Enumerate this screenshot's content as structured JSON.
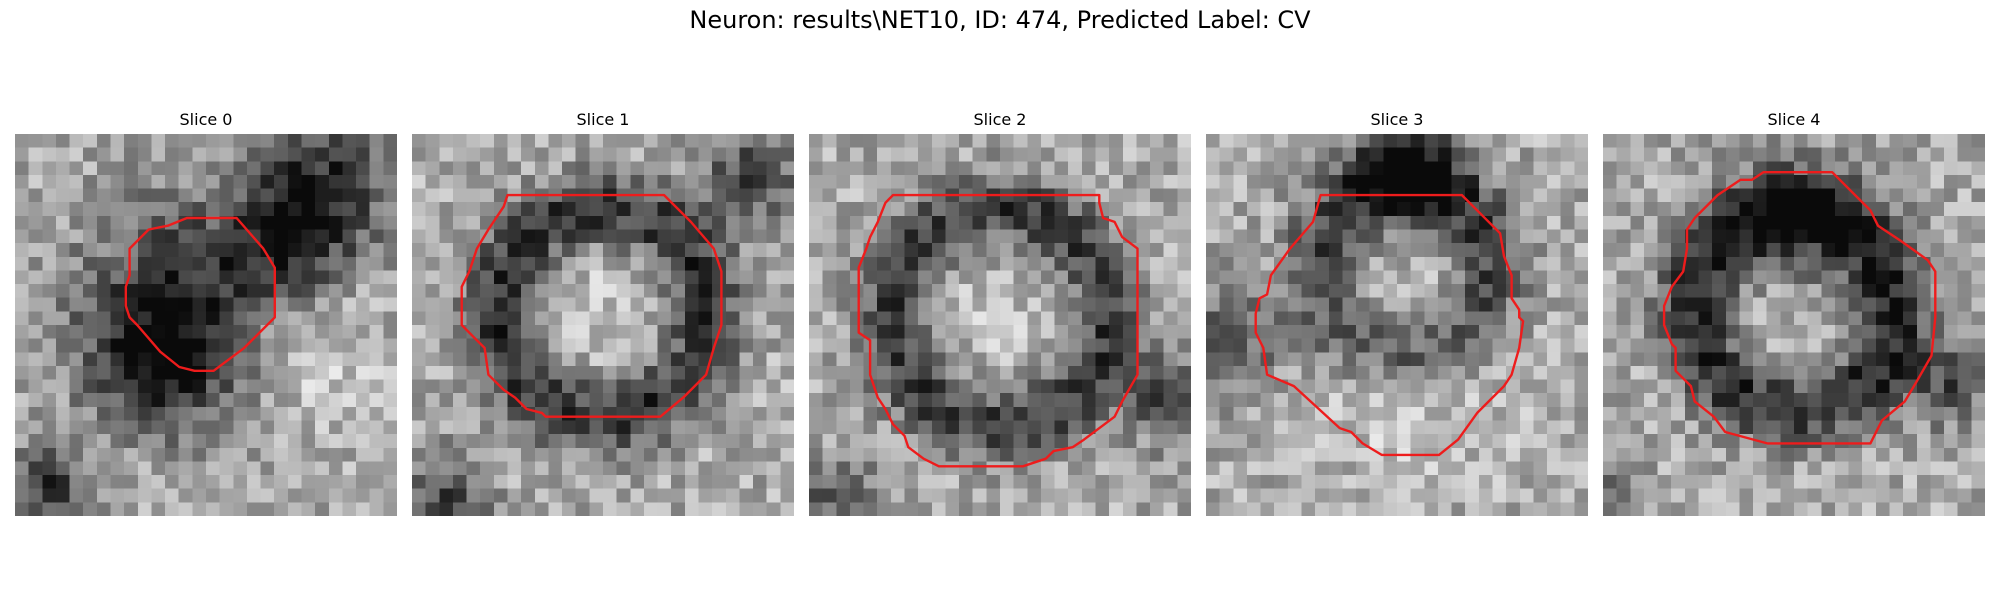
{
  "figure": {
    "title": "Neuron: results\\NET10, ID: 474, Predicted Label: CV"
  },
  "colors": {
    "contour": "#ee1c1c",
    "background": "#ffffff"
  },
  "slices": [
    {
      "label": "Slice 0",
      "seed": 11,
      "blobs": [
        [
          0.45,
          0.45,
          0.19,
          -0.55
        ],
        [
          0.35,
          0.62,
          0.12,
          -0.45
        ],
        [
          0.8,
          0.15,
          0.13,
          -0.55
        ],
        [
          0.7,
          0.3,
          0.1,
          -0.35
        ],
        [
          0.1,
          0.92,
          0.09,
          -0.55
        ],
        [
          0.75,
          0.55,
          0.12,
          0.25
        ],
        [
          0.2,
          0.85,
          0.12,
          0.15
        ]
      ],
      "contour": [
        [
          0.3,
          0.3
        ],
        [
          0.35,
          0.25
        ],
        [
          0.4,
          0.24
        ],
        [
          0.45,
          0.22
        ],
        [
          0.58,
          0.22
        ],
        [
          0.65,
          0.3
        ],
        [
          0.68,
          0.35
        ],
        [
          0.68,
          0.48
        ],
        [
          0.6,
          0.56
        ],
        [
          0.52,
          0.62
        ],
        [
          0.47,
          0.62
        ],
        [
          0.43,
          0.61
        ],
        [
          0.38,
          0.57
        ],
        [
          0.32,
          0.5
        ],
        [
          0.3,
          0.48
        ],
        [
          0.29,
          0.45
        ],
        [
          0.29,
          0.4
        ],
        [
          0.3,
          0.37
        ]
      ]
    },
    {
      "label": "Slice 1",
      "seed": 23,
      "blobs": [
        [
          0.5,
          0.47,
          0.36,
          -0.55,
          0.27
        ],
        [
          0.88,
          0.12,
          0.09,
          -0.45
        ],
        [
          0.08,
          0.95,
          0.08,
          -0.45
        ],
        [
          0.5,
          0.45,
          0.22,
          0.1
        ]
      ],
      "contour": [
        [
          0.2,
          0.25
        ],
        [
          0.24,
          0.19
        ],
        [
          0.25,
          0.16
        ],
        [
          0.35,
          0.16
        ],
        [
          0.48,
          0.16
        ],
        [
          0.59,
          0.16
        ],
        [
          0.66,
          0.16
        ],
        [
          0.73,
          0.23
        ],
        [
          0.79,
          0.3
        ],
        [
          0.81,
          0.36
        ],
        [
          0.81,
          0.5
        ],
        [
          0.79,
          0.56
        ],
        [
          0.77,
          0.63
        ],
        [
          0.71,
          0.69
        ],
        [
          0.65,
          0.74
        ],
        [
          0.6,
          0.74
        ],
        [
          0.59,
          0.74
        ],
        [
          0.35,
          0.74
        ],
        [
          0.34,
          0.73
        ],
        [
          0.3,
          0.72
        ],
        [
          0.27,
          0.69
        ],
        [
          0.24,
          0.67
        ],
        [
          0.2,
          0.63
        ],
        [
          0.19,
          0.56
        ],
        [
          0.17,
          0.54
        ],
        [
          0.13,
          0.5
        ],
        [
          0.13,
          0.4
        ],
        [
          0.15,
          0.36
        ],
        [
          0.16,
          0.33
        ],
        [
          0.17,
          0.3
        ]
      ]
    },
    {
      "label": "Slice 2",
      "seed": 37,
      "blobs": [
        [
          0.5,
          0.48,
          0.4,
          -0.5,
          0.28
        ],
        [
          0.95,
          0.7,
          0.08,
          -0.45
        ],
        [
          0.08,
          0.95,
          0.08,
          -0.35
        ],
        [
          0.5,
          0.48,
          0.22,
          0.08
        ]
      ],
      "contour": [
        [
          0.18,
          0.23
        ],
        [
          0.2,
          0.18
        ],
        [
          0.22,
          0.16
        ],
        [
          0.24,
          0.16
        ],
        [
          0.76,
          0.16
        ],
        [
          0.76,
          0.18
        ],
        [
          0.77,
          0.22
        ],
        [
          0.8,
          0.23
        ],
        [
          0.82,
          0.27
        ],
        [
          0.86,
          0.3
        ],
        [
          0.86,
          0.42
        ],
        [
          0.86,
          0.63
        ],
        [
          0.82,
          0.7
        ],
        [
          0.8,
          0.74
        ],
        [
          0.72,
          0.8
        ],
        [
          0.69,
          0.82
        ],
        [
          0.64,
          0.83
        ],
        [
          0.62,
          0.85
        ],
        [
          0.56,
          0.87
        ],
        [
          0.34,
          0.87
        ],
        [
          0.3,
          0.85
        ],
        [
          0.26,
          0.82
        ],
        [
          0.25,
          0.79
        ],
        [
          0.22,
          0.76
        ],
        [
          0.2,
          0.72
        ],
        [
          0.18,
          0.69
        ],
        [
          0.16,
          0.63
        ],
        [
          0.16,
          0.54
        ],
        [
          0.13,
          0.52
        ],
        [
          0.13,
          0.35
        ],
        [
          0.15,
          0.3
        ],
        [
          0.16,
          0.27
        ]
      ]
    },
    {
      "label": "Slice 3",
      "seed": 51,
      "blobs": [
        [
          0.52,
          0.35,
          0.3,
          -0.45,
          0.22
        ],
        [
          0.53,
          0.1,
          0.1,
          -0.55
        ],
        [
          0.05,
          0.55,
          0.1,
          -0.4
        ],
        [
          0.52,
          0.6,
          0.2,
          0.15
        ]
      ],
      "contour": [
        [
          0.22,
          0.3
        ],
        [
          0.28,
          0.23
        ],
        [
          0.3,
          0.16
        ],
        [
          0.32,
          0.16
        ],
        [
          0.67,
          0.16
        ],
        [
          0.72,
          0.21
        ],
        [
          0.77,
          0.26
        ],
        [
          0.78,
          0.32
        ],
        [
          0.8,
          0.37
        ],
        [
          0.8,
          0.43
        ],
        [
          0.82,
          0.46
        ],
        [
          0.82,
          0.48
        ],
        [
          0.83,
          0.49
        ],
        [
          0.82,
          0.56
        ],
        [
          0.8,
          0.63
        ],
        [
          0.78,
          0.66
        ],
        [
          0.71,
          0.73
        ],
        [
          0.66,
          0.8
        ],
        [
          0.61,
          0.84
        ],
        [
          0.59,
          0.84
        ],
        [
          0.46,
          0.84
        ],
        [
          0.41,
          0.81
        ],
        [
          0.38,
          0.78
        ],
        [
          0.35,
          0.77
        ],
        [
          0.23,
          0.66
        ],
        [
          0.16,
          0.63
        ],
        [
          0.15,
          0.56
        ],
        [
          0.13,
          0.52
        ],
        [
          0.13,
          0.47
        ],
        [
          0.14,
          0.43
        ],
        [
          0.16,
          0.42
        ],
        [
          0.17,
          0.37
        ]
      ]
    },
    {
      "label": "Slice 4",
      "seed": 67,
      "blobs": [
        [
          0.5,
          0.46,
          0.38,
          -0.6,
          0.26
        ],
        [
          0.52,
          0.25,
          0.13,
          -0.35
        ],
        [
          0.9,
          0.65,
          0.08,
          -0.4
        ],
        [
          0.03,
          0.95,
          0.06,
          -0.35
        ],
        [
          0.52,
          0.52,
          0.18,
          0.12
        ]
      ],
      "contour": [
        [
          0.24,
          0.22
        ],
        [
          0.3,
          0.16
        ],
        [
          0.36,
          0.12
        ],
        [
          0.39,
          0.12
        ],
        [
          0.42,
          0.1
        ],
        [
          0.6,
          0.1
        ],
        [
          0.66,
          0.16
        ],
        [
          0.7,
          0.2
        ],
        [
          0.72,
          0.24
        ],
        [
          0.78,
          0.28
        ],
        [
          0.85,
          0.33
        ],
        [
          0.87,
          0.36
        ],
        [
          0.87,
          0.48
        ],
        [
          0.86,
          0.58
        ],
        [
          0.82,
          0.65
        ],
        [
          0.79,
          0.7
        ],
        [
          0.73,
          0.75
        ],
        [
          0.7,
          0.81
        ],
        [
          0.69,
          0.81
        ],
        [
          0.65,
          0.81
        ],
        [
          0.43,
          0.81
        ],
        [
          0.32,
          0.78
        ],
        [
          0.29,
          0.74
        ],
        [
          0.24,
          0.7
        ],
        [
          0.23,
          0.66
        ],
        [
          0.19,
          0.62
        ],
        [
          0.19,
          0.56
        ],
        [
          0.18,
          0.55
        ],
        [
          0.16,
          0.5
        ],
        [
          0.16,
          0.45
        ],
        [
          0.18,
          0.4
        ],
        [
          0.21,
          0.36
        ],
        [
          0.22,
          0.3
        ],
        [
          0.22,
          0.25
        ]
      ]
    }
  ]
}
